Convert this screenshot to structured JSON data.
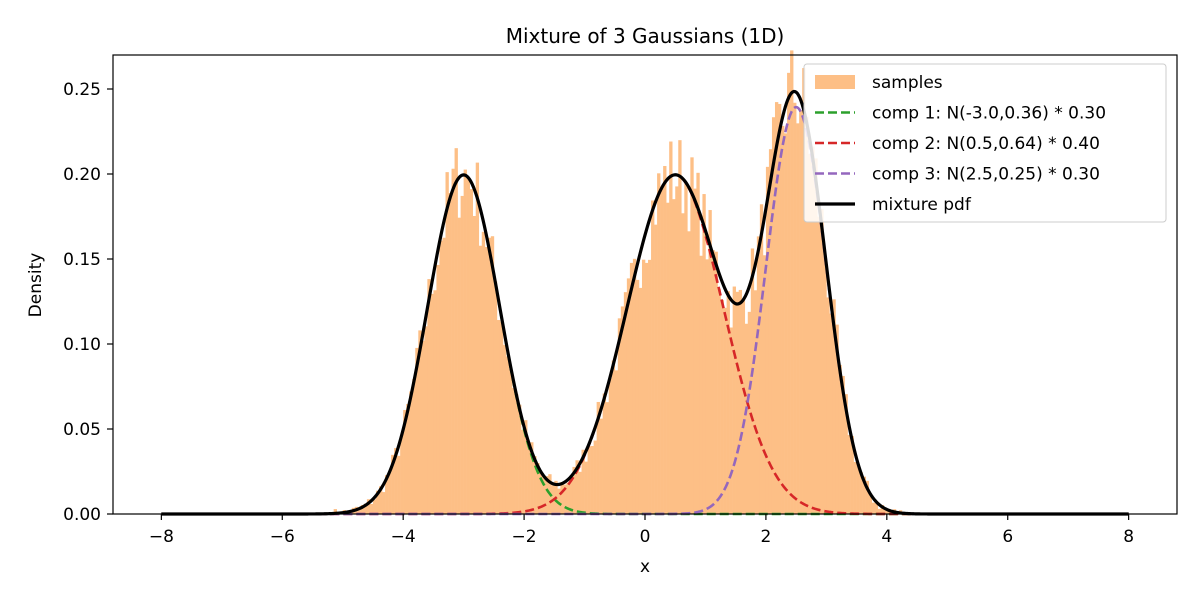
{
  "chart_data": {
    "type": "bar",
    "title": "Mixture of 3 Gaussians (1D)",
    "xlabel": "x",
    "ylabel": "Density",
    "xlim": [
      -8.8,
      8.8
    ],
    "ylim": [
      0,
      0.27
    ],
    "x_ticks": [
      -8,
      -6,
      -4,
      -2,
      0,
      2,
      4,
      6,
      8
    ],
    "x_tick_labels": [
      "−8",
      "−6",
      "−4",
      "−2",
      "0",
      "2",
      "4",
      "6",
      "8"
    ],
    "y_ticks": [
      0,
      0.05,
      0.1,
      0.15,
      0.2,
      0.25
    ],
    "y_tick_labels": [
      "0.00",
      "0.05",
      "0.10",
      "0.15",
      "0.20",
      "0.25"
    ],
    "grid": false,
    "legend_position": "top-right",
    "components": [
      {
        "name": "comp 1: N(-3.0,0.36) * 0.30",
        "mean": -3.0,
        "variance": 0.36,
        "weight": 0.3,
        "color": "#2ca02c",
        "style": "dashed"
      },
      {
        "name": "comp 2: N(0.5,0.64) * 0.40",
        "mean": 0.5,
        "variance": 0.64,
        "weight": 0.4,
        "color": "#d62728",
        "style": "dashed"
      },
      {
        "name": "comp 3: N(2.5,0.25) * 0.30",
        "mean": 2.5,
        "variance": 0.25,
        "weight": 0.3,
        "color": "#9467bd",
        "style": "dashed"
      }
    ],
    "mixture": {
      "name": "mixture pdf",
      "color": "#000000",
      "style": "solid"
    },
    "curve_domain": [
      -8,
      8
    ],
    "histogram": {
      "name": "samples",
      "color": "#fdbf86",
      "bin_edges_range": [
        -5.2,
        4.3
      ],
      "bin_count": 190,
      "values": []
    }
  }
}
